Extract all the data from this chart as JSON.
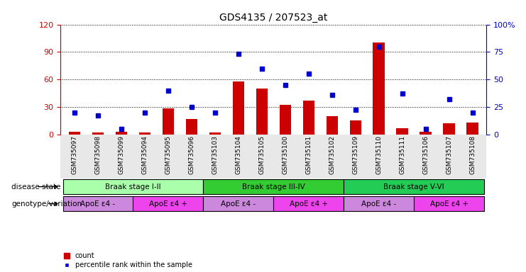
{
  "title": "GDS4135 / 207523_at",
  "samples": [
    "GSM735097",
    "GSM735098",
    "GSM735099",
    "GSM735094",
    "GSM735095",
    "GSM735096",
    "GSM735103",
    "GSM735104",
    "GSM735105",
    "GSM735100",
    "GSM735101",
    "GSM735102",
    "GSM735109",
    "GSM735110",
    "GSM735111",
    "GSM735106",
    "GSM735107",
    "GSM735108"
  ],
  "counts": [
    3,
    2,
    3,
    2,
    28,
    17,
    2,
    58,
    50,
    32,
    37,
    20,
    15,
    100,
    7,
    3,
    12,
    13
  ],
  "percentiles": [
    20,
    17,
    5,
    20,
    40,
    25,
    20,
    73,
    60,
    45,
    55,
    36,
    22,
    80,
    37,
    5,
    32,
    20
  ],
  "bar_color": "#cc0000",
  "dot_color": "#0000cc",
  "left_yaxis_color": "#cc0000",
  "right_yaxis_color": "#0000cc",
  "left_ylim": [
    0,
    120
  ],
  "left_yticks": [
    0,
    30,
    60,
    90,
    120
  ],
  "right_ylim": [
    0,
    100
  ],
  "right_yticks": [
    0,
    25,
    50,
    75,
    100
  ],
  "disease_state_groups": [
    {
      "label": "Braak stage I-II",
      "start": 0,
      "end": 6,
      "color": "#aaffaa"
    },
    {
      "label": "Braak stage III-IV",
      "start": 6,
      "end": 12,
      "color": "#33cc33"
    },
    {
      "label": "Braak stage V-VI",
      "start": 12,
      "end": 18,
      "color": "#22cc55"
    }
  ],
  "genotype_groups": [
    {
      "label": "ApoE ε4 -",
      "start": 0,
      "end": 3,
      "color": "#cc88dd"
    },
    {
      "label": "ApoE ε4 +",
      "start": 3,
      "end": 6,
      "color": "#ee44ee"
    },
    {
      "label": "ApoE ε4 -",
      "start": 6,
      "end": 9,
      "color": "#cc88dd"
    },
    {
      "label": "ApoE ε4 +",
      "start": 9,
      "end": 12,
      "color": "#ee44ee"
    },
    {
      "label": "ApoE ε4 -",
      "start": 12,
      "end": 15,
      "color": "#cc88dd"
    },
    {
      "label": "ApoE ε4 +",
      "start": 15,
      "end": 18,
      "color": "#ee44ee"
    }
  ],
  "legend_count_label": "count",
  "legend_pct_label": "percentile rank within the sample",
  "left_label": "disease state",
  "left_label2": "genotype/variation"
}
